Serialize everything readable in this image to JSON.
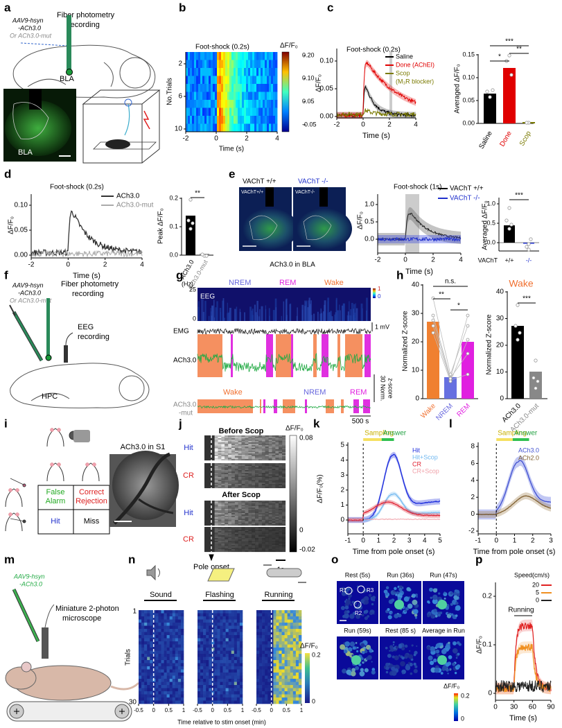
{
  "a": {
    "letter": "a",
    "vector": [
      "AAV9-hsyn",
      "-ACh3.0"
    ],
    "alt": "Or ACh3.0-mut",
    "recording": [
      "Fiber photometry",
      "recording"
    ],
    "region": "BLA",
    "image_label": "BLA"
  },
  "b": {
    "letter": "b",
    "title": "Foot-shock (0.2s)",
    "ylabel": "No.Trials",
    "yticks": [
      "2",
      "6",
      "10"
    ],
    "xticks": [
      "-2",
      "0",
      "2",
      "4"
    ],
    "xlabel": "Time (s)",
    "cbar_label": "ΔF/F₀",
    "cbar_ticks": [
      "0.20",
      "0.10",
      "0.05",
      "-0.05"
    ]
  },
  "c": {
    "letter": "c",
    "title": "Foot-shock (0.2s)",
    "legend": [
      "Saline",
      "Done (AChEI)",
      "Scop",
      "(M₃R blocker)"
    ],
    "ylabel": "ΔF/F₀",
    "yticks": [
      "0.00",
      "0.05",
      "0.10"
    ],
    "xticks": [
      "-2",
      "0",
      "2",
      "4"
    ],
    "xlabel": "Time (s)",
    "bar_ylabel": "Averaged ΔF/F₀",
    "bar_yticks": [
      "0.00",
      "0.05",
      "0.10",
      "0.15"
    ],
    "categories": [
      "Saline",
      "Done",
      "Scop"
    ],
    "significance": [
      "***",
      "*",
      "**"
    ]
  },
  "d": {
    "letter": "d",
    "title": "Foot-shock (0.2s)",
    "legend": [
      "ACh3.0",
      "ACh3.0-mut"
    ],
    "ylabel": "ΔF/F₀",
    "yticks": [
      "0.00",
      "0.05",
      "0.10"
    ],
    "xticks": [
      "-2",
      "0",
      "2",
      "4"
    ],
    "xlabel": "Time (s)",
    "bar_ylabel": "Peak ΔF/F₀",
    "bar_yticks": [
      "0.0",
      "0.1",
      "0.2"
    ],
    "categories": [
      "ACh3.0",
      "ACh3.0-mut"
    ],
    "significance": "**"
  },
  "e": {
    "letter": "e",
    "image_headers": [
      "VAChT +/+",
      "VAChT -/-"
    ],
    "image_labels": [
      "VAChT+/+",
      "VAChT-/-"
    ],
    "caption": "ACh3.0 in BLA",
    "title": "Foot-shock (1s)",
    "legend": [
      "VAChT +/+",
      "VAChT -/-"
    ],
    "ylabel": "ΔF/F₀",
    "yticks": [
      "0.0",
      "0.5",
      "1.0"
    ],
    "xticks": [
      "-2",
      "0",
      "2",
      "4"
    ],
    "xlabel": "Time (s)",
    "bar_ylabel": "Averaged ΔF/F₀",
    "bar_yticks": [
      "0.0",
      "0.5",
      "1.0"
    ],
    "bar_xlabel": "VAChT",
    "categories": [
      "+/+",
      "-/-"
    ],
    "significance": "***"
  },
  "f": {
    "letter": "f",
    "vector": [
      "AAV9-hsyn",
      "-ACh3.0"
    ],
    "alt": "Or ACh3.0-mut",
    "recording": [
      "Fiber photometry",
      "recording"
    ],
    "eeg": [
      "EEG",
      "recording"
    ],
    "region": "HPC"
  },
  "g": {
    "letter": "g",
    "freq_unit": "(Hz)",
    "states_top": [
      "NREM",
      "REM",
      "Wake"
    ],
    "freq_ticks": [
      "25",
      "0"
    ],
    "eeg": "EEG",
    "cbar_ticks": [
      "1",
      "0"
    ],
    "emg_scale": "1 mV",
    "emg": "EMG",
    "sensor": "ACh3.0",
    "states_bottom": [
      "Wake",
      "NREM",
      "REM"
    ],
    "mut": [
      "ACh3.0",
      "-mut"
    ],
    "z_scale": [
      "30 Norm.",
      "z-score"
    ],
    "time_scale": "500 s"
  },
  "h": {
    "letter": "h",
    "ylabel": "Normalized Z-score",
    "yticks": [
      "0",
      "10",
      "20",
      "30",
      "40"
    ],
    "categories": [
      "Wake",
      "NREM",
      "REM"
    ],
    "significance": [
      "n.s.",
      "**",
      "*"
    ],
    "right_title": "Wake",
    "right_ylabel": "Normalized Z-score",
    "right_yticks": [
      "0",
      "10",
      "20",
      "30",
      "40"
    ],
    "right_categories": [
      "ACh3.0",
      "ACh3.0-mut"
    ],
    "right_significance": "***"
  },
  "i": {
    "letter": "i",
    "cells": [
      [
        "False",
        "Alarm"
      ],
      [
        "Correct",
        "Rejection"
      ],
      [
        "Hit"
      ],
      [
        "Miss"
      ]
    ],
    "image_title": "ACh3.0 in S1"
  },
  "j": {
    "letter": "j",
    "before": "Before Scop",
    "after": "After Scop",
    "rows": [
      "Hit",
      "CR",
      "Hit",
      "CR"
    ],
    "cbar_label": "ΔF/F₀",
    "cbar_ticks": [
      "0.08",
      "0",
      "-0.02"
    ],
    "marker": "Pole onset",
    "scale": "1s"
  },
  "k": {
    "letter": "k",
    "epochs": [
      "Sampling",
      "Answer"
    ],
    "legend": [
      "Hit",
      "Hit+Scop",
      "CR",
      "CR+Scop"
    ],
    "ylabel": "ΔF/F₀(%)",
    "yticks": [
      "0",
      "1",
      "2",
      "3",
      "4",
      "5"
    ],
    "xticks": [
      "-1",
      "0",
      "1",
      "2",
      "3",
      "4",
      "5"
    ],
    "xlabel": "Time from pole onset (s)"
  },
  "l": {
    "letter": "l",
    "epochs": [
      "Sampling",
      "Answer"
    ],
    "legend": [
      "ACh3.0",
      "ACh2.0"
    ],
    "yticks": [
      "-2",
      "0",
      "2",
      "4",
      "6",
      "8"
    ],
    "xticks": [
      "-1",
      "0",
      "1",
      "2",
      "3"
    ],
    "xlabel": "Time from pole onset (s)"
  },
  "m": {
    "letter": "m",
    "vector": [
      "AAV9-hsyn",
      "-ACh3.0"
    ],
    "device": [
      "Miniature 2-photon",
      "microscope"
    ]
  },
  "n": {
    "letter": "n",
    "stimuli": [
      "Sound",
      "Flashing",
      "Running"
    ],
    "yticks": [
      "1",
      "30"
    ],
    "ylabel": "Trials",
    "xticks": [
      "-0.5",
      "0",
      "0.5",
      "1"
    ],
    "xlabel": "Time relative to stim onset (min)",
    "cbar_label": "ΔF/F₀",
    "cbar_ticks": [
      "0.2",
      "0"
    ]
  },
  "o": {
    "letter": "o",
    "frames": [
      "Rest (5s)",
      "Run (36s)",
      "Run (47s)",
      "Run (59s)",
      "Rest (85 s)",
      "Average in Run"
    ],
    "rois": [
      "R1",
      "R3",
      "R2"
    ],
    "cbar_label": "ΔF/F₀",
    "cbar_ticks": [
      "0.2",
      "0"
    ]
  },
  "p": {
    "letter": "p",
    "legend_title": "Speed(cm/s)",
    "legend": [
      "20",
      "5",
      "0"
    ],
    "epoch": "Running",
    "ylabel": "ΔF/F₀",
    "yticks": [
      "0",
      "0.1",
      "0.2"
    ],
    "xticks": [
      "0",
      "30",
      "60",
      "90"
    ],
    "xlabel": "Time (s)"
  }
}
